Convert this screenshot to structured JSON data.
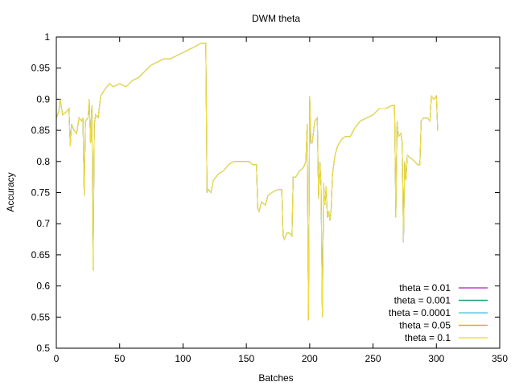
{
  "chart_data": {
    "type": "line",
    "title": "DWM theta",
    "xlabel": "Batches",
    "ylabel": "Accuracy",
    "xlim": [
      0,
      350
    ],
    "ylim": [
      0.5,
      1
    ],
    "xticks": [
      0,
      50,
      100,
      150,
      200,
      250,
      300,
      350
    ],
    "xtick_labels": [
      "0",
      "50",
      "100",
      "150",
      "200",
      "250",
      "300",
      "350"
    ],
    "yticks": [
      0.5,
      0.55,
      0.6,
      0.65,
      0.7,
      0.75,
      0.8,
      0.85,
      0.9,
      0.95,
      1
    ],
    "ytick_labels": [
      "0.5",
      "0.55",
      "0.6",
      "0.65",
      "0.7",
      "0.75",
      "0.8",
      "0.85",
      "0.9",
      "0.95",
      "1"
    ],
    "grid": false,
    "legend_position": "bottom-right",
    "series": [
      {
        "name": "theta = 0.01",
        "color": "#c040d0",
        "ref": "overlaps 'theta = 0.1'"
      },
      {
        "name": "theta = 0.001",
        "color": "#20a080",
        "ref": "overlaps 'theta = 0.1'"
      },
      {
        "name": "theta = 0.0001",
        "color": "#60c8e8",
        "ref": "overlaps 'theta = 0.1'"
      },
      {
        "name": "theta = 0.05",
        "color": "#e6a820",
        "ref": "overlaps 'theta = 0.1'"
      },
      {
        "name": "theta = 0.1",
        "color": "#f0e040",
        "points": [
          [
            0,
            0.87
          ],
          [
            2,
            0.88
          ],
          [
            3,
            0.9
          ],
          [
            5,
            0.875
          ],
          [
            8,
            0.88
          ],
          [
            10,
            0.885
          ],
          [
            11,
            0.825
          ],
          [
            12,
            0.86
          ],
          [
            14,
            0.85
          ],
          [
            16,
            0.845
          ],
          [
            18,
            0.87
          ],
          [
            20,
            0.865
          ],
          [
            21,
            0.87
          ],
          [
            22,
            0.745
          ],
          [
            23,
            0.865
          ],
          [
            25,
            0.87
          ],
          [
            26,
            0.9
          ],
          [
            27,
            0.83
          ],
          [
            28,
            0.89
          ],
          [
            29,
            0.625
          ],
          [
            30,
            0.86
          ],
          [
            31,
            0.875
          ],
          [
            33,
            0.87
          ],
          [
            35,
            0.905
          ],
          [
            38,
            0.915
          ],
          [
            42,
            0.925
          ],
          [
            45,
            0.92
          ],
          [
            50,
            0.925
          ],
          [
            55,
            0.92
          ],
          [
            60,
            0.93
          ],
          [
            65,
            0.935
          ],
          [
            70,
            0.945
          ],
          [
            75,
            0.955
          ],
          [
            80,
            0.96
          ],
          [
            85,
            0.965
          ],
          [
            90,
            0.965
          ],
          [
            95,
            0.97
          ],
          [
            100,
            0.975
          ],
          [
            105,
            0.98
          ],
          [
            110,
            0.985
          ],
          [
            114,
            0.99
          ],
          [
            118,
            0.99
          ],
          [
            119,
            0.75
          ],
          [
            120,
            0.755
          ],
          [
            122,
            0.75
          ],
          [
            124,
            0.77
          ],
          [
            128,
            0.78
          ],
          [
            132,
            0.785
          ],
          [
            136,
            0.795
          ],
          [
            140,
            0.8
          ],
          [
            145,
            0.8
          ],
          [
            150,
            0.8
          ],
          [
            152,
            0.8
          ],
          [
            155,
            0.795
          ],
          [
            158,
            0.795
          ],
          [
            159,
            0.725
          ],
          [
            160,
            0.72
          ],
          [
            162,
            0.735
          ],
          [
            165,
            0.73
          ],
          [
            167,
            0.745
          ],
          [
            170,
            0.75
          ],
          [
            175,
            0.755
          ],
          [
            178,
            0.755
          ],
          [
            179,
            0.68
          ],
          [
            180,
            0.675
          ],
          [
            182,
            0.685
          ],
          [
            184,
            0.685
          ],
          [
            186,
            0.68
          ],
          [
            187,
            0.775
          ],
          [
            189,
            0.775
          ],
          [
            192,
            0.785
          ],
          [
            195,
            0.79
          ],
          [
            197,
            0.8
          ],
          [
            198,
            0.86
          ],
          [
            199,
            0.545
          ],
          [
            200,
            0.905
          ],
          [
            201,
            0.83
          ],
          [
            202,
            0.83
          ],
          [
            204,
            0.865
          ],
          [
            206,
            0.87
          ],
          [
            207,
            0.74
          ],
          [
            208,
            0.8
          ],
          [
            209,
            0.76
          ],
          [
            210,
            0.55
          ],
          [
            211,
            0.765
          ],
          [
            212,
            0.73
          ],
          [
            213,
            0.76
          ],
          [
            214,
            0.71
          ],
          [
            215,
            0.72
          ],
          [
            216,
            0.705
          ],
          [
            217,
            0.725
          ],
          [
            218,
            0.78
          ],
          [
            220,
            0.81
          ],
          [
            222,
            0.825
          ],
          [
            225,
            0.835
          ],
          [
            228,
            0.84
          ],
          [
            232,
            0.84
          ],
          [
            236,
            0.855
          ],
          [
            240,
            0.865
          ],
          [
            245,
            0.87
          ],
          [
            250,
            0.875
          ],
          [
            255,
            0.885
          ],
          [
            260,
            0.885
          ],
          [
            265,
            0.89
          ],
          [
            267,
            0.89
          ],
          [
            268,
            0.71
          ],
          [
            269,
            0.865
          ],
          [
            270,
            0.84
          ],
          [
            272,
            0.845
          ],
          [
            273,
            0.83
          ],
          [
            274,
            0.67
          ],
          [
            275,
            0.8
          ],
          [
            276,
            0.77
          ],
          [
            277,
            0.81
          ],
          [
            280,
            0.805
          ],
          [
            283,
            0.8
          ],
          [
            285,
            0.795
          ],
          [
            287,
            0.795
          ],
          [
            288,
            0.865
          ],
          [
            290,
            0.87
          ],
          [
            293,
            0.87
          ],
          [
            295,
            0.865
          ],
          [
            296,
            0.905
          ],
          [
            298,
            0.9
          ],
          [
            300,
            0.905
          ],
          [
            301,
            0.85
          ]
        ]
      }
    ]
  }
}
